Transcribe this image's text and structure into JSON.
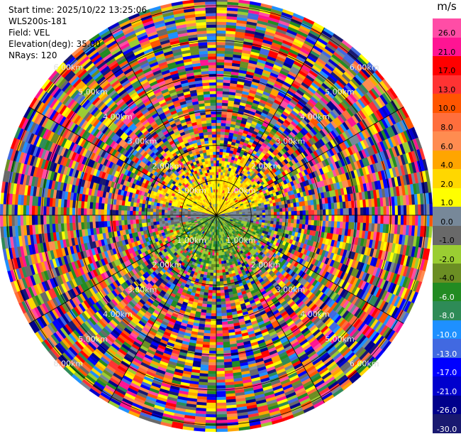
{
  "header": {
    "start_time": "Start time: 2025/10/22 13:25:06",
    "instrument": "WLS200s-181",
    "field": "Field: VEL",
    "elevation": "Elevation(deg): 35.00",
    "nrays": "NRays: 120"
  },
  "legend": {
    "unit": "m/s",
    "ticks": [
      "26.0",
      "21.0",
      "17.0",
      "13.0",
      "10.0",
      "8.0",
      "6.0",
      "4.0",
      "2.0",
      "1.0",
      "0.0",
      "-1.0",
      "-2.0",
      "-4.0",
      "-6.0",
      "-8.0",
      "-10.0",
      "-13.0",
      "-17.0",
      "-21.0",
      "-26.0",
      "-30.0"
    ],
    "colors": [
      "#ff4da6",
      "#ff1493",
      "#ff0000",
      "#ff3333",
      "#ff5500",
      "#ff6e3c",
      "#ff8c50",
      "#ffa500",
      "#ffd700",
      "#ffff00",
      "#778899",
      "#696969",
      "#9acd32",
      "#6b8e23",
      "#228b22",
      "#2e8b57",
      "#1e90ff",
      "#4169e1",
      "#0000ff",
      "#0000cd",
      "#00008b",
      "#191970"
    ]
  },
  "chart_data": {
    "type": "heatmap",
    "projection": "polar (PPI)",
    "field": "VEL",
    "units": "m/s",
    "n_rays": 120,
    "elevation_deg": 35.0,
    "range_rings_km": [
      1.0,
      2.0,
      3.0,
      4.0,
      5.0,
      6.0
    ],
    "ring_labels": [
      "1.00km",
      "2.00km",
      "3.00km",
      "4.00km",
      "5.00km",
      "6.00km"
    ],
    "spoke_angles_deg": [
      0,
      30,
      60,
      90,
      120,
      150,
      180,
      210,
      240,
      270,
      300,
      330
    ],
    "colorbar_range": [
      -30.0,
      26.0
    ],
    "near_field": {
      "north_sector_velocity_ms": "1.0 to 4.0",
      "south_sector_velocity_ms": "-1.0 to -6.0",
      "east_west_velocity_ms": "0.0 to -1.0",
      "coherent_radius_km": 1.6
    },
    "far_field": "noise across full colorscale"
  }
}
